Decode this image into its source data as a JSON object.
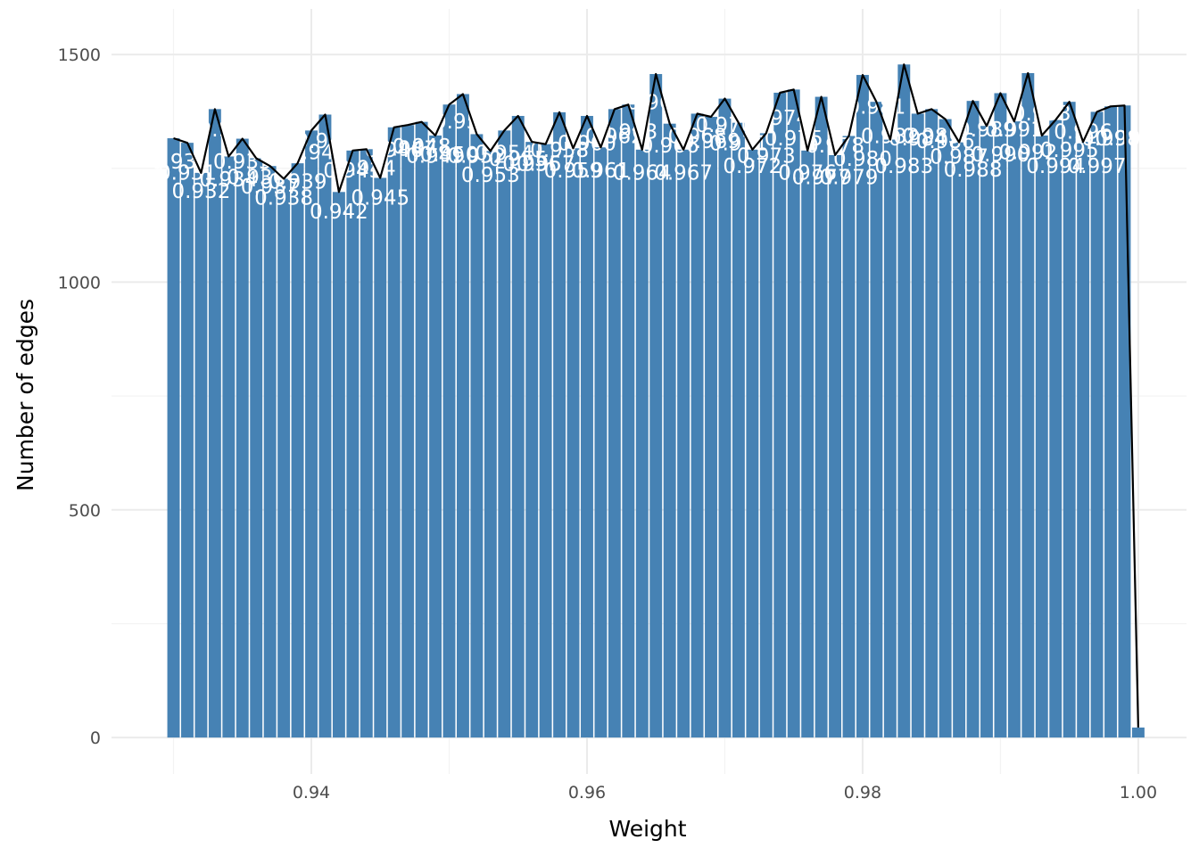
{
  "chart_data": {
    "type": "bar",
    "title": "",
    "xlabel": "Weight",
    "ylabel": "Number of edges",
    "xlim": [
      0.9255,
      1.0035
    ],
    "ylim": [
      -80,
      1600
    ],
    "x_ticks": [
      0.94,
      0.96,
      0.98,
      1.0
    ],
    "x_tick_labels": [
      "0.94",
      "0.96",
      "0.98",
      "1.00"
    ],
    "y_ticks": [
      0,
      500,
      1000,
      1500
    ],
    "y_tick_labels": [
      "0",
      "500",
      "1000",
      "1500"
    ],
    "bar_width": 0.0009,
    "grid": true,
    "legend": "none",
    "colors": {
      "bar": "#4682b4",
      "line": "#000000",
      "label": "#ffffff",
      "grid": "#ebebeb"
    },
    "categories": [
      0.93,
      0.931,
      0.932,
      0.933,
      0.934,
      0.935,
      0.936,
      0.937,
      0.938,
      0.939,
      0.94,
      0.941,
      0.942,
      0.943,
      0.944,
      0.945,
      0.946,
      0.947,
      0.948,
      0.949,
      0.95,
      0.951,
      0.952,
      0.953,
      0.954,
      0.955,
      0.956,
      0.957,
      0.958,
      0.959,
      0.96,
      0.961,
      0.962,
      0.963,
      0.964,
      0.965,
      0.966,
      0.967,
      0.968,
      0.969,
      0.97,
      0.971,
      0.972,
      0.973,
      0.974,
      0.975,
      0.976,
      0.977,
      0.978,
      0.979,
      0.98,
      0.981,
      0.982,
      0.983,
      0.984,
      0.985,
      0.986,
      0.987,
      0.988,
      0.989,
      0.99,
      0.991,
      0.992,
      0.993,
      0.994,
      0.995,
      0.996,
      0.997,
      0.998,
      0.999,
      1.0
    ],
    "values": [
      1316,
      1306,
      1240,
      1380,
      1276,
      1315,
      1272,
      1255,
      1227,
      1261,
      1333,
      1368,
      1198,
      1289,
      1292,
      1229,
      1340,
      1345,
      1352,
      1322,
      1390,
      1413,
      1325,
      1288,
      1333,
      1365,
      1308,
      1303,
      1373,
      1294,
      1365,
      1296,
      1380,
      1390,
      1291,
      1457,
      1348,
      1291,
      1370,
      1363,
      1403,
      1350,
      1291,
      1327,
      1416,
      1423,
      1289,
      1407,
      1279,
      1321,
      1455,
      1396,
      1313,
      1478,
      1370,
      1380,
      1358,
      1307,
      1398,
      1343,
      1415,
      1353,
      1459,
      1322,
      1356,
      1396,
      1308,
      1374,
      1386,
      1388,
      22
    ],
    "bar_labels": [
      {
        "x": 0.93,
        "y": 1250,
        "text": "0.93"
      },
      {
        "x": 0.931,
        "y": 1225,
        "text": "0.931"
      },
      {
        "x": 0.932,
        "y": 1185,
        "text": "0.932"
      },
      {
        "x": 0.933,
        "y": 1320,
        "text": "0.9"
      },
      {
        "x": 0.934,
        "y": 1210,
        "text": "0.934"
      },
      {
        "x": 0.935,
        "y": 1250,
        "text": "0.935"
      },
      {
        "x": 0.936,
        "y": 1215,
        "text": "0.936"
      },
      {
        "x": 0.937,
        "y": 1195,
        "text": "0.937"
      },
      {
        "x": 0.938,
        "y": 1170,
        "text": "0.938"
      },
      {
        "x": 0.939,
        "y": 1205,
        "text": "0.939"
      },
      {
        "x": 0.94,
        "y": 1270,
        "text": "0.94"
      },
      {
        "x": 0.941,
        "y": 1295,
        "text": "0.941"
      },
      {
        "x": 0.942,
        "y": 1140,
        "text": "0.942"
      },
      {
        "x": 0.943,
        "y": 1230,
        "text": "0.943"
      },
      {
        "x": 0.944,
        "y": 1235,
        "text": "0.944"
      },
      {
        "x": 0.945,
        "y": 1170,
        "text": "0.945"
      },
      {
        "x": 0.946,
        "y": 1275,
        "text": "0.946"
      },
      {
        "x": 0.947,
        "y": 1278,
        "text": "0.947"
      },
      {
        "x": 0.948,
        "y": 1283,
        "text": "0.948"
      },
      {
        "x": 0.949,
        "y": 1262,
        "text": "0.949"
      },
      {
        "x": 0.95,
        "y": 1265,
        "text": "0.950"
      },
      {
        "x": 0.951,
        "y": 1338,
        "text": "0.951"
      },
      {
        "x": 0.952,
        "y": 1262,
        "text": "0.952"
      },
      {
        "x": 0.953,
        "y": 1220,
        "text": "0.953"
      },
      {
        "x": 0.954,
        "y": 1268,
        "text": "0.954"
      },
      {
        "x": 0.955,
        "y": 1255,
        "text": "0.955"
      },
      {
        "x": 0.956,
        "y": 1245,
        "text": "0.956"
      },
      {
        "x": 0.957,
        "y": 1245,
        "text": "0.957"
      },
      {
        "x": 0.958,
        "y": 1275,
        "text": "0.958"
      },
      {
        "x": 0.959,
        "y": 1230,
        "text": "0.959"
      },
      {
        "x": 0.96,
        "y": 1290,
        "text": "0.960"
      },
      {
        "x": 0.961,
        "y": 1230,
        "text": "0.961"
      },
      {
        "x": 0.962,
        "y": 1305,
        "text": "0.962"
      },
      {
        "x": 0.963,
        "y": 1315,
        "text": "0.963"
      },
      {
        "x": 0.964,
        "y": 1225,
        "text": "0.964"
      },
      {
        "x": 0.965,
        "y": 1380,
        "text": "0.965"
      },
      {
        "x": 0.966,
        "y": 1285,
        "text": "0.966"
      },
      {
        "x": 0.967,
        "y": 1225,
        "text": "0.967"
      },
      {
        "x": 0.968,
        "y": 1305,
        "text": "0.968"
      },
      {
        "x": 0.969,
        "y": 1295,
        "text": "0.969"
      },
      {
        "x": 0.97,
        "y": 1330,
        "text": "0.970"
      },
      {
        "x": 0.971,
        "y": 1290,
        "text": "0.971"
      },
      {
        "x": 0.972,
        "y": 1240,
        "text": "0.972"
      },
      {
        "x": 0.973,
        "y": 1262,
        "text": "0.973"
      },
      {
        "x": 0.974,
        "y": 1345,
        "text": "0.974"
      },
      {
        "x": 0.975,
        "y": 1300,
        "text": "0.975"
      },
      {
        "x": 0.976,
        "y": 1225,
        "text": "0.976"
      },
      {
        "x": 0.977,
        "y": 1215,
        "text": "0.977"
      },
      {
        "x": 0.978,
        "y": 1285,
        "text": "0.978"
      },
      {
        "x": 0.979,
        "y": 1215,
        "text": "0.979"
      },
      {
        "x": 0.98,
        "y": 1255,
        "text": "0.980"
      },
      {
        "x": 0.981,
        "y": 1370,
        "text": "0.981"
      },
      {
        "x": 0.982,
        "y": 1305,
        "text": "0.982"
      },
      {
        "x": 0.983,
        "y": 1240,
        "text": "0.983"
      },
      {
        "x": 0.984,
        "y": 1300,
        "text": "0.984"
      },
      {
        "x": 0.985,
        "y": 1305,
        "text": "0.985"
      },
      {
        "x": 0.986,
        "y": 1295,
        "text": "0.986"
      },
      {
        "x": 0.987,
        "y": 1260,
        "text": "0.987"
      },
      {
        "x": 0.988,
        "y": 1232,
        "text": "0.988"
      },
      {
        "x": 0.989,
        "y": 1320,
        "text": "0.989"
      },
      {
        "x": 0.99,
        "y": 1265,
        "text": "0.990"
      },
      {
        "x": 0.991,
        "y": 1320,
        "text": "0.991"
      },
      {
        "x": 0.992,
        "y": 1270,
        "text": "0.992"
      },
      {
        "x": 0.993,
        "y": 1355,
        "text": "0.993"
      },
      {
        "x": 0.994,
        "y": 1240,
        "text": "0.994"
      },
      {
        "x": 0.995,
        "y": 1275,
        "text": "0.995"
      },
      {
        "x": 0.996,
        "y": 1315,
        "text": "0.996"
      },
      {
        "x": 0.997,
        "y": 1240,
        "text": "0.997"
      },
      {
        "x": 0.998,
        "y": 1300,
        "text": "0.998"
      },
      {
        "x": 0.999,
        "y": 1300,
        "text": "0.999"
      }
    ]
  }
}
